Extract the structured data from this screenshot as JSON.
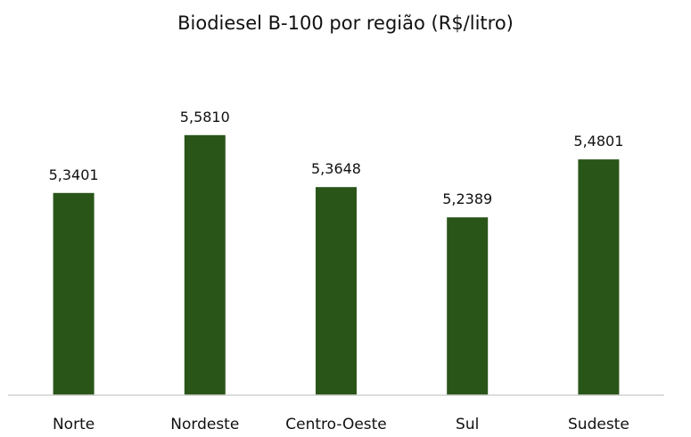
{
  "chart_data": {
    "type": "bar",
    "title": "Biodiesel B-100 por região (R$/litro)",
    "xlabel": "",
    "ylabel": "",
    "categories": [
      "Norte",
      "Nordeste",
      "Centro-Oeste",
      "Sul",
      "Sudeste"
    ],
    "values": [
      5.3401,
      5.581,
      5.3648,
      5.2389,
      5.4801
    ],
    "data_labels": [
      "5,3401",
      "5,5810",
      "5,3648",
      "5,2389",
      "5,4801"
    ],
    "ylim": [
      4.4985,
      5.6322
    ],
    "grid": false,
    "legend": "none",
    "bar_color": "#2a5519",
    "axis_color": "#d0d0d0"
  }
}
